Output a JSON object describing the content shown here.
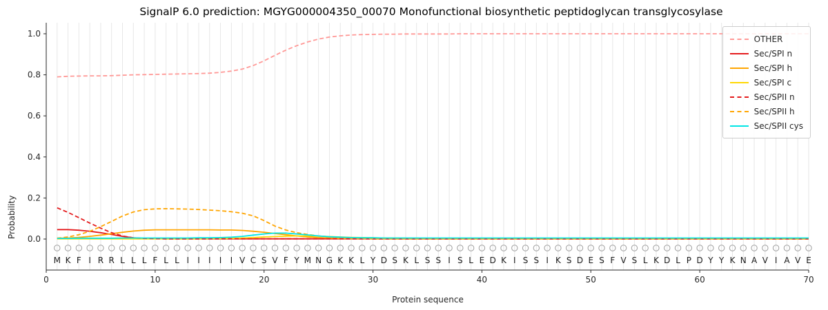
{
  "chart_data": {
    "type": "line",
    "title": "SignalP 6.0 prediction: MGYG000004350_00070 Monofunctional biosynthetic peptidoglycan transglycosylase",
    "xlabel": "Protein sequence",
    "ylabel": "Probability",
    "xlim": [
      0,
      70
    ],
    "ylim": [
      -0.15,
      1.05
    ],
    "xticks": [
      0,
      10,
      20,
      30,
      40,
      50,
      60,
      70
    ],
    "yticks": [
      0.0,
      0.2,
      0.4,
      0.6,
      0.8,
      1.0
    ],
    "grid": "vertical-per-residue",
    "grid_color": "#e6e6e6",
    "axis_color": "#262626",
    "legend_position": "upper right",
    "sequence": "MKFIRRLLLFLLIIIIIVCSVFYMNGKKLYDSKLSSISLEDKISSIKSDESFVSLKDLPDYYKNAVIAVE",
    "series": [
      {
        "name": "OTHER",
        "color": "#ff9896",
        "dashed": true,
        "values": [
          0.79,
          0.793,
          0.794,
          0.795,
          0.795,
          0.796,
          0.798,
          0.8,
          0.801,
          0.802,
          0.803,
          0.804,
          0.805,
          0.806,
          0.808,
          0.812,
          0.818,
          0.828,
          0.845,
          0.868,
          0.895,
          0.92,
          0.942,
          0.96,
          0.974,
          0.984,
          0.99,
          0.994,
          0.996,
          0.997,
          0.998,
          0.998,
          0.999,
          0.999,
          0.999,
          0.999,
          0.999,
          1,
          1,
          1,
          1,
          1,
          1,
          1,
          1,
          1,
          1,
          1,
          1,
          1,
          1,
          1,
          1,
          1,
          1,
          1,
          1,
          1,
          1,
          1,
          1,
          1,
          1,
          1,
          1,
          1,
          1,
          1,
          1,
          1
        ]
      },
      {
        "name": "Sec/SPI n",
        "color": "#e41a1c",
        "dashed": false,
        "values": [
          0.046,
          0.046,
          0.043,
          0.038,
          0.031,
          0.022,
          0.013,
          0.006,
          0.003,
          0.002,
          0.001,
          0.001,
          0.001,
          0.001,
          0.001,
          0.001,
          0.001,
          0.001,
          0.001,
          0.001,
          0.001,
          0.001,
          0.001,
          0.001,
          0.001,
          0.001,
          0.001,
          0.001,
          0.001,
          0.001,
          0.001,
          0.001,
          0.001,
          0.001,
          0.001,
          0.001,
          0.001,
          0.001,
          0.001,
          0.001,
          0.001,
          0.001,
          0.001,
          0.001,
          0.001,
          0.001,
          0.001,
          0.001,
          0.001,
          0.001,
          0.001,
          0.001,
          0.001,
          0.001,
          0.001,
          0.001,
          0.001,
          0.001,
          0.001,
          0.001,
          0.001,
          0.001,
          0.001,
          0.001,
          0.001,
          0.001,
          0.001,
          0.001,
          0.001,
          0.001
        ]
      },
      {
        "name": "Sec/SPI h",
        "color": "#ffa500",
        "dashed": false,
        "values": [
          0.004,
          0.005,
          0.008,
          0.013,
          0.019,
          0.026,
          0.033,
          0.039,
          0.043,
          0.045,
          0.045,
          0.045,
          0.045,
          0.045,
          0.045,
          0.044,
          0.044,
          0.042,
          0.038,
          0.033,
          0.027,
          0.021,
          0.015,
          0.01,
          0.007,
          0.005,
          0.003,
          0.002,
          0.002,
          0.001,
          0.001,
          0.001,
          0.001,
          0.001,
          0.001,
          0.001,
          0.001,
          0.001,
          0.001,
          0.001,
          0.001,
          0.001,
          0.001,
          0.001,
          0.001,
          0.001,
          0.001,
          0.001,
          0.001,
          0.001,
          0.001,
          0.001,
          0.001,
          0.001,
          0.001,
          0.001,
          0.001,
          0.001,
          0.001,
          0.001,
          0.001,
          0.001,
          0.001,
          0.001,
          0.001,
          0.001,
          0.001,
          0.001,
          0.001,
          0.001
        ]
      },
      {
        "name": "Sec/SPI c",
        "color": "#ffd700",
        "dashed": false,
        "values": [
          0.001,
          0.001,
          0.001,
          0.001,
          0.001,
          0.001,
          0.001,
          0.001,
          0.001,
          0.001,
          0.001,
          0.001,
          0.001,
          0.001,
          0.002,
          0.002,
          0.003,
          0.005,
          0.007,
          0.01,
          0.012,
          0.014,
          0.015,
          0.015,
          0.014,
          0.012,
          0.01,
          0.008,
          0.007,
          0.006,
          0.005,
          0.005,
          0.004,
          0.004,
          0.003,
          0.003,
          0.003,
          0.002,
          0.002,
          0.002,
          0.002,
          0.002,
          0.002,
          0.002,
          0.002,
          0.002,
          0.002,
          0.002,
          0.002,
          0.002,
          0.002,
          0.002,
          0.002,
          0.002,
          0.002,
          0.002,
          0.002,
          0.002,
          0.002,
          0.002,
          0.002,
          0.002,
          0.002,
          0.002,
          0.002,
          0.002,
          0.002,
          0.002,
          0.002,
          0.002
        ]
      },
      {
        "name": "Sec/SPII n",
        "color": "#e41a1c",
        "dashed": true,
        "values": [
          0.152,
          0.13,
          0.104,
          0.078,
          0.053,
          0.031,
          0.015,
          0.006,
          0.003,
          0.002,
          0.001,
          0.001,
          0.001,
          0.001,
          0.001,
          0.001,
          0.001,
          0.001,
          0.001,
          0.001,
          0.001,
          0.001,
          0.001,
          0.001,
          0.001,
          0.001,
          0.001,
          0.001,
          0.001,
          0.001,
          0.001,
          0.001,
          0.001,
          0.001,
          0.001,
          0.001,
          0.001,
          0.001,
          0.001,
          0.001,
          0.001,
          0.001,
          0.001,
          0.001,
          0.001,
          0.001,
          0.001,
          0.001,
          0.001,
          0.001,
          0.001,
          0.001,
          0.001,
          0.001,
          0.001,
          0.001,
          0.001,
          0.001,
          0.001,
          0.001,
          0.001,
          0.001,
          0.001,
          0.001,
          0.001,
          0.001,
          0.001,
          0.001,
          0.001,
          0.001
        ]
      },
      {
        "name": "Sec/SPII h",
        "color": "#ffa500",
        "dashed": true,
        "values": [
          0.004,
          0.01,
          0.021,
          0.038,
          0.06,
          0.086,
          0.112,
          0.132,
          0.143,
          0.147,
          0.148,
          0.147,
          0.146,
          0.144,
          0.141,
          0.138,
          0.133,
          0.126,
          0.113,
          0.09,
          0.063,
          0.044,
          0.031,
          0.022,
          0.015,
          0.011,
          0.008,
          0.006,
          0.004,
          0.003,
          0.003,
          0.002,
          0.002,
          0.002,
          0.002,
          0.002,
          0.002,
          0.002,
          0.002,
          0.002,
          0.002,
          0.002,
          0.002,
          0.002,
          0.002,
          0.002,
          0.002,
          0.002,
          0.002,
          0.002,
          0.002,
          0.002,
          0.002,
          0.002,
          0.002,
          0.002,
          0.002,
          0.002,
          0.002,
          0.002,
          0.002,
          0.002,
          0.002,
          0.002,
          0.002,
          0.002,
          0.002,
          0.002,
          0.002,
          0.002
        ]
      },
      {
        "name": "Sec/SPII cys",
        "color": "#00e5e5",
        "dashed": false,
        "values": [
          0.003,
          0.003,
          0.004,
          0.004,
          0.004,
          0.004,
          0.005,
          0.005,
          0.005,
          0.005,
          0.005,
          0.005,
          0.005,
          0.006,
          0.006,
          0.007,
          0.009,
          0.013,
          0.019,
          0.025,
          0.029,
          0.029,
          0.025,
          0.02,
          0.015,
          0.011,
          0.009,
          0.007,
          0.006,
          0.006,
          0.005,
          0.005,
          0.005,
          0.005,
          0.005,
          0.005,
          0.005,
          0.005,
          0.005,
          0.005,
          0.005,
          0.005,
          0.005,
          0.005,
          0.005,
          0.005,
          0.005,
          0.005,
          0.005,
          0.005,
          0.005,
          0.005,
          0.005,
          0.005,
          0.005,
          0.005,
          0.005,
          0.005,
          0.005,
          0.005,
          0.005,
          0.005,
          0.005,
          0.005,
          0.005,
          0.005,
          0.005,
          0.005,
          0.005,
          0.005
        ]
      }
    ]
  }
}
